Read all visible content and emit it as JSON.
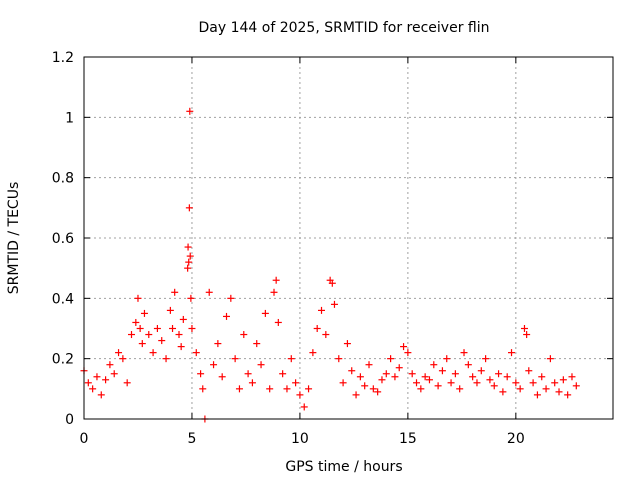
{
  "chart_data": {
    "type": "scatter",
    "title": "Day 144 of 2025, SRMTID for receiver flin",
    "xlabel": "GPS time / hours",
    "ylabel": "SRMTID / TECUs",
    "xlim": [
      0,
      24.5
    ],
    "ylim": [
      0,
      1.2
    ],
    "xticks": [
      0,
      5,
      10,
      15,
      20
    ],
    "xtick_labels": [
      "0",
      "5",
      "10",
      "15",
      "20"
    ],
    "yticks": [
      0,
      0.2,
      0.4,
      0.6,
      0.8,
      1.0,
      1.2
    ],
    "ytick_labels": [
      "0",
      "0.2",
      "0.4",
      "0.6",
      "0.8",
      "1",
      "1.2"
    ],
    "grid": true,
    "marker": "+",
    "series": [
      {
        "name": "SRMTID",
        "color": "#ff0000",
        "x": [
          0.0,
          0.2,
          0.4,
          0.6,
          0.8,
          1.0,
          1.2,
          1.4,
          1.6,
          1.8,
          2.0,
          2.2,
          2.4,
          2.5,
          2.6,
          2.7,
          2.8,
          3.0,
          3.2,
          3.4,
          3.6,
          3.8,
          4.0,
          4.1,
          4.2,
          4.4,
          4.5,
          4.6,
          4.8,
          4.82,
          4.85,
          4.88,
          4.9,
          4.92,
          4.95,
          5.0,
          5.2,
          5.4,
          5.5,
          5.6,
          5.8,
          6.0,
          6.2,
          6.4,
          6.6,
          6.8,
          7.0,
          7.2,
          7.4,
          7.6,
          7.8,
          8.0,
          8.2,
          8.4,
          8.6,
          8.8,
          8.9,
          9.0,
          9.2,
          9.4,
          9.6,
          9.8,
          10.0,
          10.2,
          10.4,
          10.6,
          10.8,
          11.0,
          11.2,
          11.4,
          11.5,
          11.6,
          11.8,
          12.0,
          12.2,
          12.4,
          12.6,
          12.8,
          13.0,
          13.2,
          13.4,
          13.6,
          13.8,
          14.0,
          14.2,
          14.4,
          14.6,
          14.8,
          15.0,
          15.2,
          15.4,
          15.6,
          15.8,
          16.0,
          16.2,
          16.4,
          16.6,
          16.8,
          17.0,
          17.2,
          17.4,
          17.6,
          17.8,
          18.0,
          18.2,
          18.4,
          18.6,
          18.8,
          19.0,
          19.2,
          19.4,
          19.6,
          19.8,
          20.0,
          20.2,
          20.4,
          20.5,
          20.6,
          20.8,
          21.0,
          21.2,
          21.4,
          21.6,
          21.8,
          22.0,
          22.2,
          22.4,
          22.6,
          22.8
        ],
        "y": [
          0.16,
          0.12,
          0.1,
          0.14,
          0.08,
          0.13,
          0.18,
          0.15,
          0.22,
          0.2,
          0.12,
          0.28,
          0.32,
          0.4,
          0.3,
          0.25,
          0.35,
          0.28,
          0.22,
          0.3,
          0.26,
          0.2,
          0.36,
          0.3,
          0.42,
          0.28,
          0.24,
          0.33,
          0.5,
          0.57,
          0.52,
          0.7,
          1.02,
          0.54,
          0.4,
          0.3,
          0.22,
          0.15,
          0.1,
          0.0,
          0.42,
          0.18,
          0.25,
          0.14,
          0.34,
          0.4,
          0.2,
          0.1,
          0.28,
          0.15,
          0.12,
          0.25,
          0.18,
          0.35,
          0.1,
          0.42,
          0.46,
          0.32,
          0.15,
          0.1,
          0.2,
          0.12,
          0.08,
          0.04,
          0.1,
          0.22,
          0.3,
          0.36,
          0.28,
          0.46,
          0.45,
          0.38,
          0.2,
          0.12,
          0.25,
          0.16,
          0.08,
          0.14,
          0.11,
          0.18,
          0.1,
          0.09,
          0.13,
          0.15,
          0.2,
          0.14,
          0.17,
          0.24,
          0.22,
          0.15,
          0.12,
          0.1,
          0.14,
          0.13,
          0.18,
          0.11,
          0.16,
          0.2,
          0.12,
          0.15,
          0.1,
          0.22,
          0.18,
          0.14,
          0.12,
          0.16,
          0.2,
          0.13,
          0.11,
          0.15,
          0.09,
          0.14,
          0.22,
          0.12,
          0.1,
          0.3,
          0.28,
          0.16,
          0.12,
          0.08,
          0.14,
          0.1,
          0.2,
          0.12,
          0.09,
          0.13,
          0.08,
          0.14,
          0.11
        ]
      }
    ]
  }
}
